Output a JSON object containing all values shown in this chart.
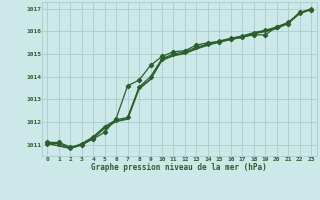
{
  "title": "Graphe pression niveau de la mer (hPa)",
  "bg_color": "#cce8e8",
  "grid_color": "#aacccc",
  "line_color": "#2a5e2a",
  "xlim": [
    -0.5,
    23.5
  ],
  "ylim": [
    1010.5,
    1017.3
  ],
  "yticks": [
    1011,
    1012,
    1013,
    1014,
    1015,
    1016,
    1017
  ],
  "xticks": [
    0,
    1,
    2,
    3,
    4,
    5,
    6,
    7,
    8,
    9,
    10,
    11,
    12,
    13,
    14,
    15,
    16,
    17,
    18,
    19,
    20,
    21,
    22,
    23
  ],
  "line1_x": [
    0,
    1,
    2,
    3,
    4,
    5,
    6,
    7,
    8,
    9,
    10,
    11,
    12,
    13,
    14,
    15,
    16,
    17,
    18,
    19,
    20,
    21,
    22,
    23
  ],
  "line1": [
    1011.1,
    1011.1,
    1010.9,
    1011.0,
    1011.25,
    1011.55,
    1012.15,
    1013.6,
    1013.85,
    1014.5,
    1014.9,
    1015.1,
    1015.15,
    1015.4,
    1015.5,
    1015.55,
    1015.65,
    1015.75,
    1015.85,
    1015.85,
    1016.2,
    1016.35,
    1016.85,
    1016.95
  ],
  "line2_x": [
    0,
    1,
    2,
    3,
    4,
    5,
    6,
    7,
    8,
    9,
    10,
    11,
    12,
    13,
    14,
    15,
    16,
    17,
    18,
    19,
    20,
    21,
    22,
    23
  ],
  "line2": [
    1011.05,
    1011.05,
    1010.85,
    1011.05,
    1011.35,
    1011.8,
    1012.1,
    1012.2,
    1013.55,
    1014.0,
    1014.8,
    1015.0,
    1015.1,
    1015.3,
    1015.45,
    1015.58,
    1015.7,
    1015.8,
    1015.95,
    1016.05,
    1016.2,
    1016.4,
    1016.82,
    1017.0
  ],
  "line3_x": [
    0,
    2,
    3,
    4,
    5,
    6,
    7,
    8,
    9,
    10,
    11,
    12,
    13,
    14,
    15,
    16,
    17,
    18,
    19,
    20,
    21,
    22,
    23
  ],
  "line3": [
    1011.05,
    1010.85,
    1011.0,
    1011.3,
    1011.75,
    1012.05,
    1012.15,
    1013.5,
    1013.9,
    1014.75,
    1014.95,
    1015.05,
    1015.25,
    1015.42,
    1015.55,
    1015.67,
    1015.77,
    1015.92,
    1016.02,
    1016.15,
    1016.38,
    1016.8,
    1016.98
  ],
  "line4_x": [
    0,
    2,
    3,
    4,
    5,
    6,
    7,
    8,
    9,
    10,
    11,
    12,
    13,
    14,
    15,
    16,
    17,
    18,
    19,
    20,
    21,
    22,
    23
  ],
  "line4": [
    1011.05,
    1010.83,
    1010.98,
    1011.28,
    1011.72,
    1012.02,
    1012.12,
    1013.45,
    1013.87,
    1014.72,
    1014.92,
    1015.02,
    1015.22,
    1015.39,
    1015.52,
    1015.64,
    1015.74,
    1015.89,
    1015.99,
    1016.12,
    1016.35,
    1016.78,
    1016.96
  ]
}
